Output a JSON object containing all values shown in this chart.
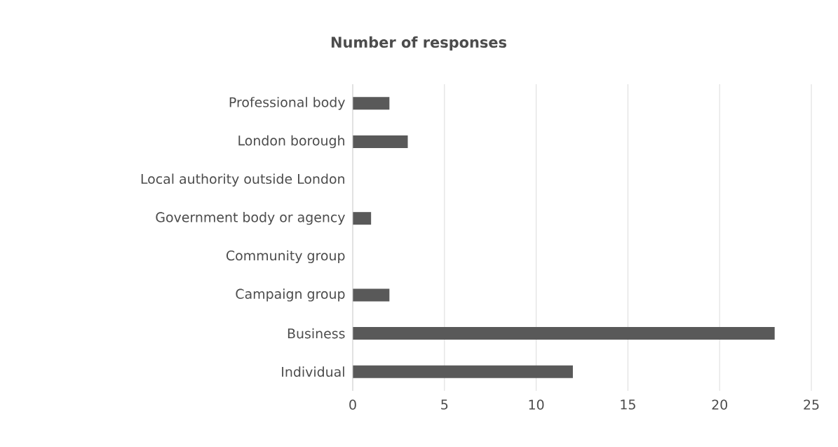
{
  "chart_data": {
    "type": "bar",
    "orientation": "horizontal",
    "title": "Number of responses",
    "categories": [
      "Professional body",
      "London borough",
      "Local authority outside London",
      "Government body or agency",
      "Community group",
      "Campaign group",
      "Business",
      "Individual"
    ],
    "values": [
      2,
      3,
      0,
      1,
      0,
      2,
      23,
      12
    ],
    "color": "#595959",
    "xlim": [
      0,
      25
    ],
    "xticks": [
      0,
      5,
      10,
      15,
      20,
      25
    ],
    "grid": "x"
  }
}
